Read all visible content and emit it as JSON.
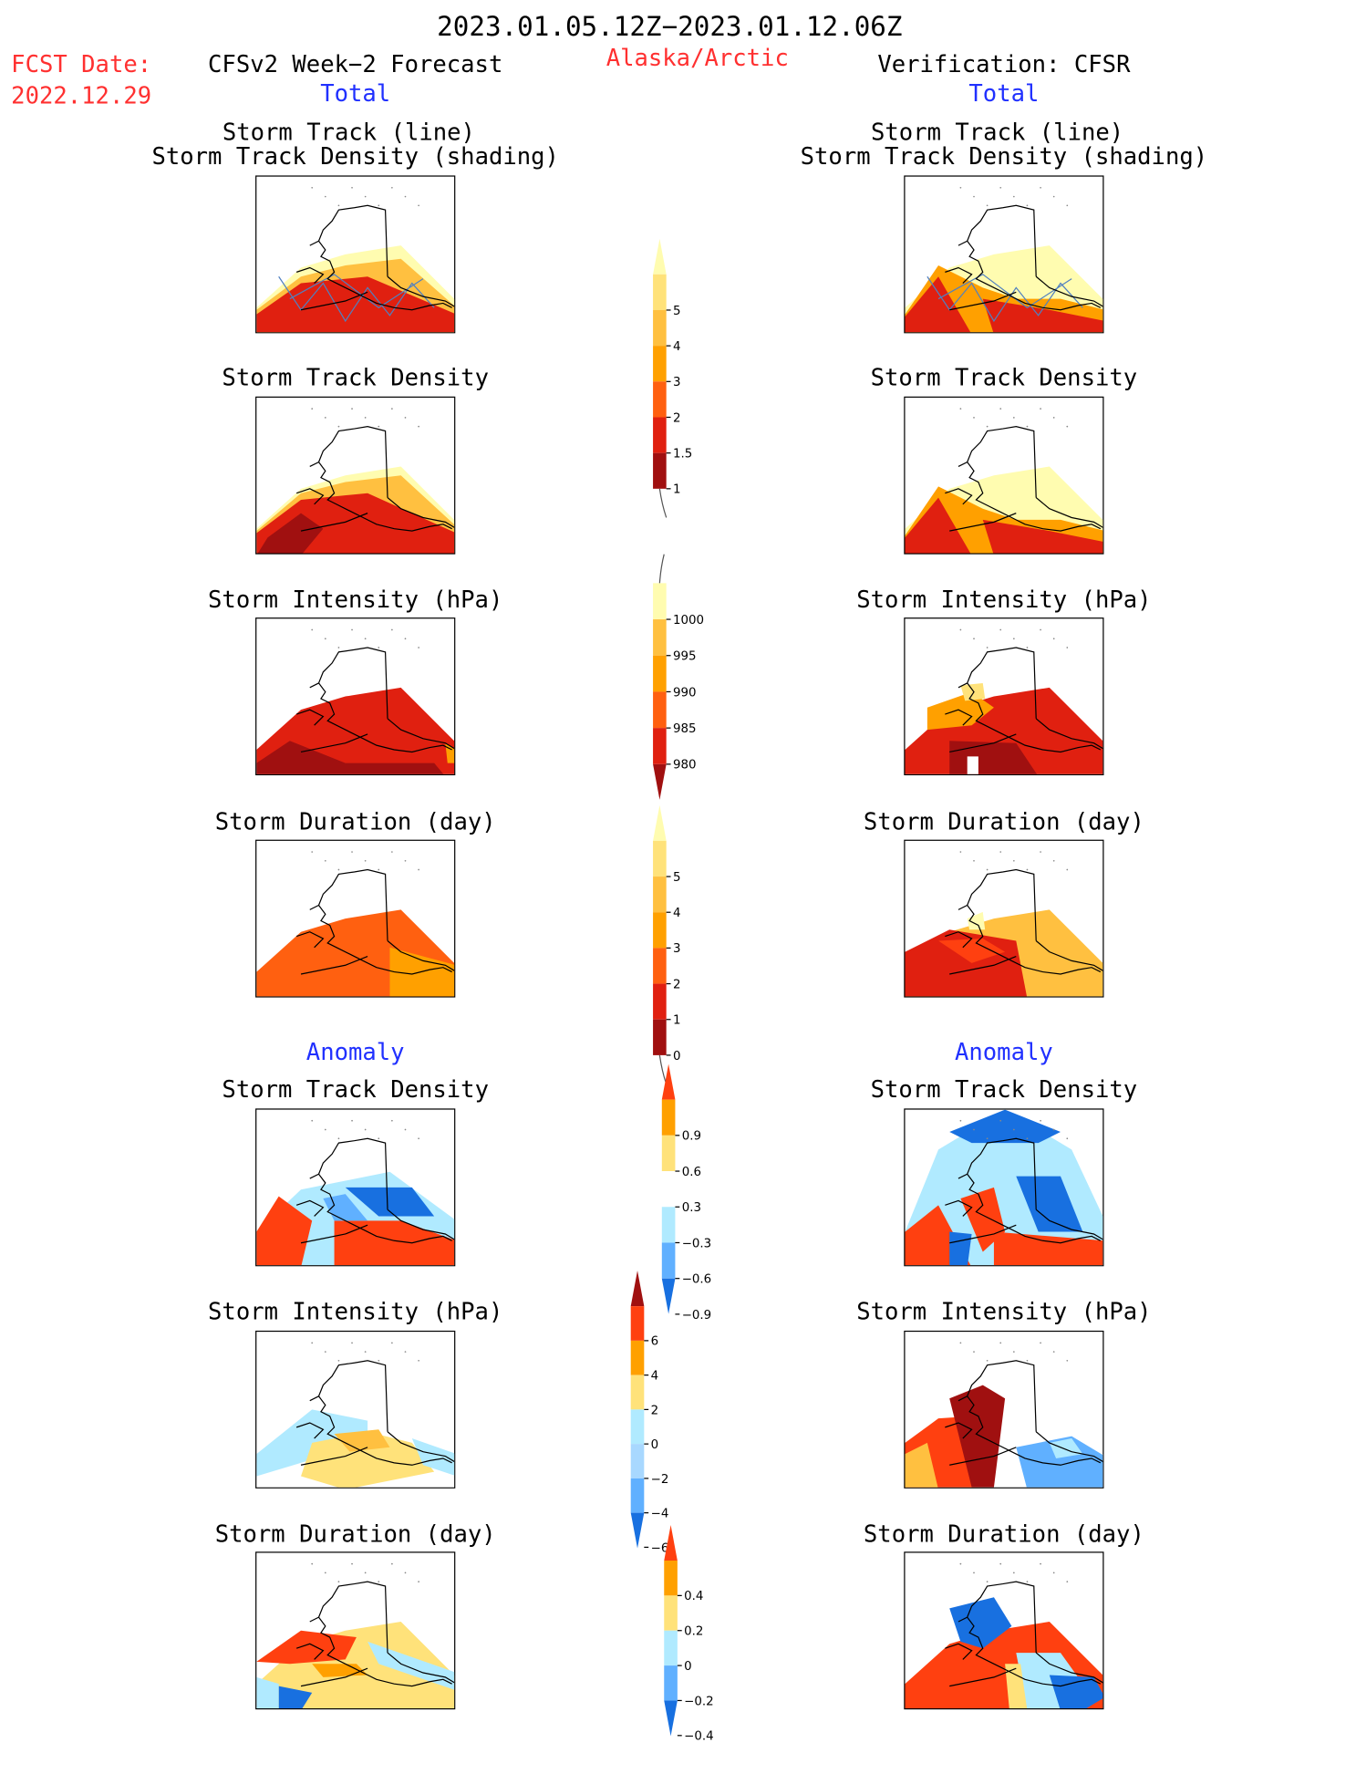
{
  "header": {
    "period": "2023.01.05.12Z−2023.01.12.06Z",
    "fcst_label": "FCST Date:",
    "fcst_date": "2022.12.29",
    "region": "Alaska/Arctic",
    "left_title": "CFSv2 Week−2 Forecast",
    "right_title": "Verification: CFSR",
    "total_label": "Total",
    "anomaly_label": "Anomaly"
  },
  "panel_titles": {
    "track_line": "Storm Track (line)",
    "track_shading": "Storm Track Density (shading)",
    "density": "Storm Track Density",
    "intensity": "Storm Intensity (hPa)",
    "duration": "Storm Duration (day)"
  },
  "colorbars": {
    "density_total": {
      "labels": [
        "1",
        "1.5",
        "2",
        "3",
        "4",
        "5"
      ],
      "colors": [
        "#fffcb0",
        "#ffe27a",
        "#ffc040",
        "#ffa000",
        "#ff6010",
        "#e02010",
        "#a01010"
      ]
    },
    "intensity_total": {
      "labels": [
        "1000",
        "995",
        "990",
        "985",
        "980"
      ],
      "colors": [
        "#fffcb0",
        "#ffc040",
        "#ffa000",
        "#ff6010",
        "#e02010",
        "#a01010"
      ]
    },
    "duration_total": {
      "labels": [
        "0",
        "1",
        "2",
        "3",
        "4",
        "5"
      ],
      "colors": [
        "#fffcb0",
        "#ffe27a",
        "#ffc040",
        "#ffa000",
        "#ff6010",
        "#e02010",
        "#a01010"
      ]
    },
    "density_anom": {
      "labels": [
        "0.9",
        "0.6",
        "0.3",
        "−0.3",
        "−0.6",
        "−0.9"
      ],
      "colors": [
        "#ff4010",
        "#ffa000",
        "#ffe27a",
        "#ffffff",
        "#b0eaff",
        "#60b0ff",
        "#1870e0"
      ]
    },
    "intensity_anom": {
      "labels": [
        "6",
        "4",
        "2",
        "0",
        "−2",
        "−4",
        "−6"
      ],
      "colors": [
        "#a01010",
        "#ff4010",
        "#ffa000",
        "#ffe27a",
        "#b0eaff",
        "#a8d8ff",
        "#60b0ff",
        "#1870e0"
      ]
    },
    "duration_anom": {
      "labels": [
        "0.4",
        "0.2",
        "0",
        "−0.2",
        "−0.4"
      ],
      "colors": [
        "#ff4010",
        "#ffa000",
        "#ffe27a",
        "#b0eaff",
        "#60b0ff",
        "#1870e0"
      ]
    }
  },
  "colors": {
    "header_red": "#ff3030",
    "header_blue": "#2030ff",
    "track_line": "#5080c0"
  }
}
